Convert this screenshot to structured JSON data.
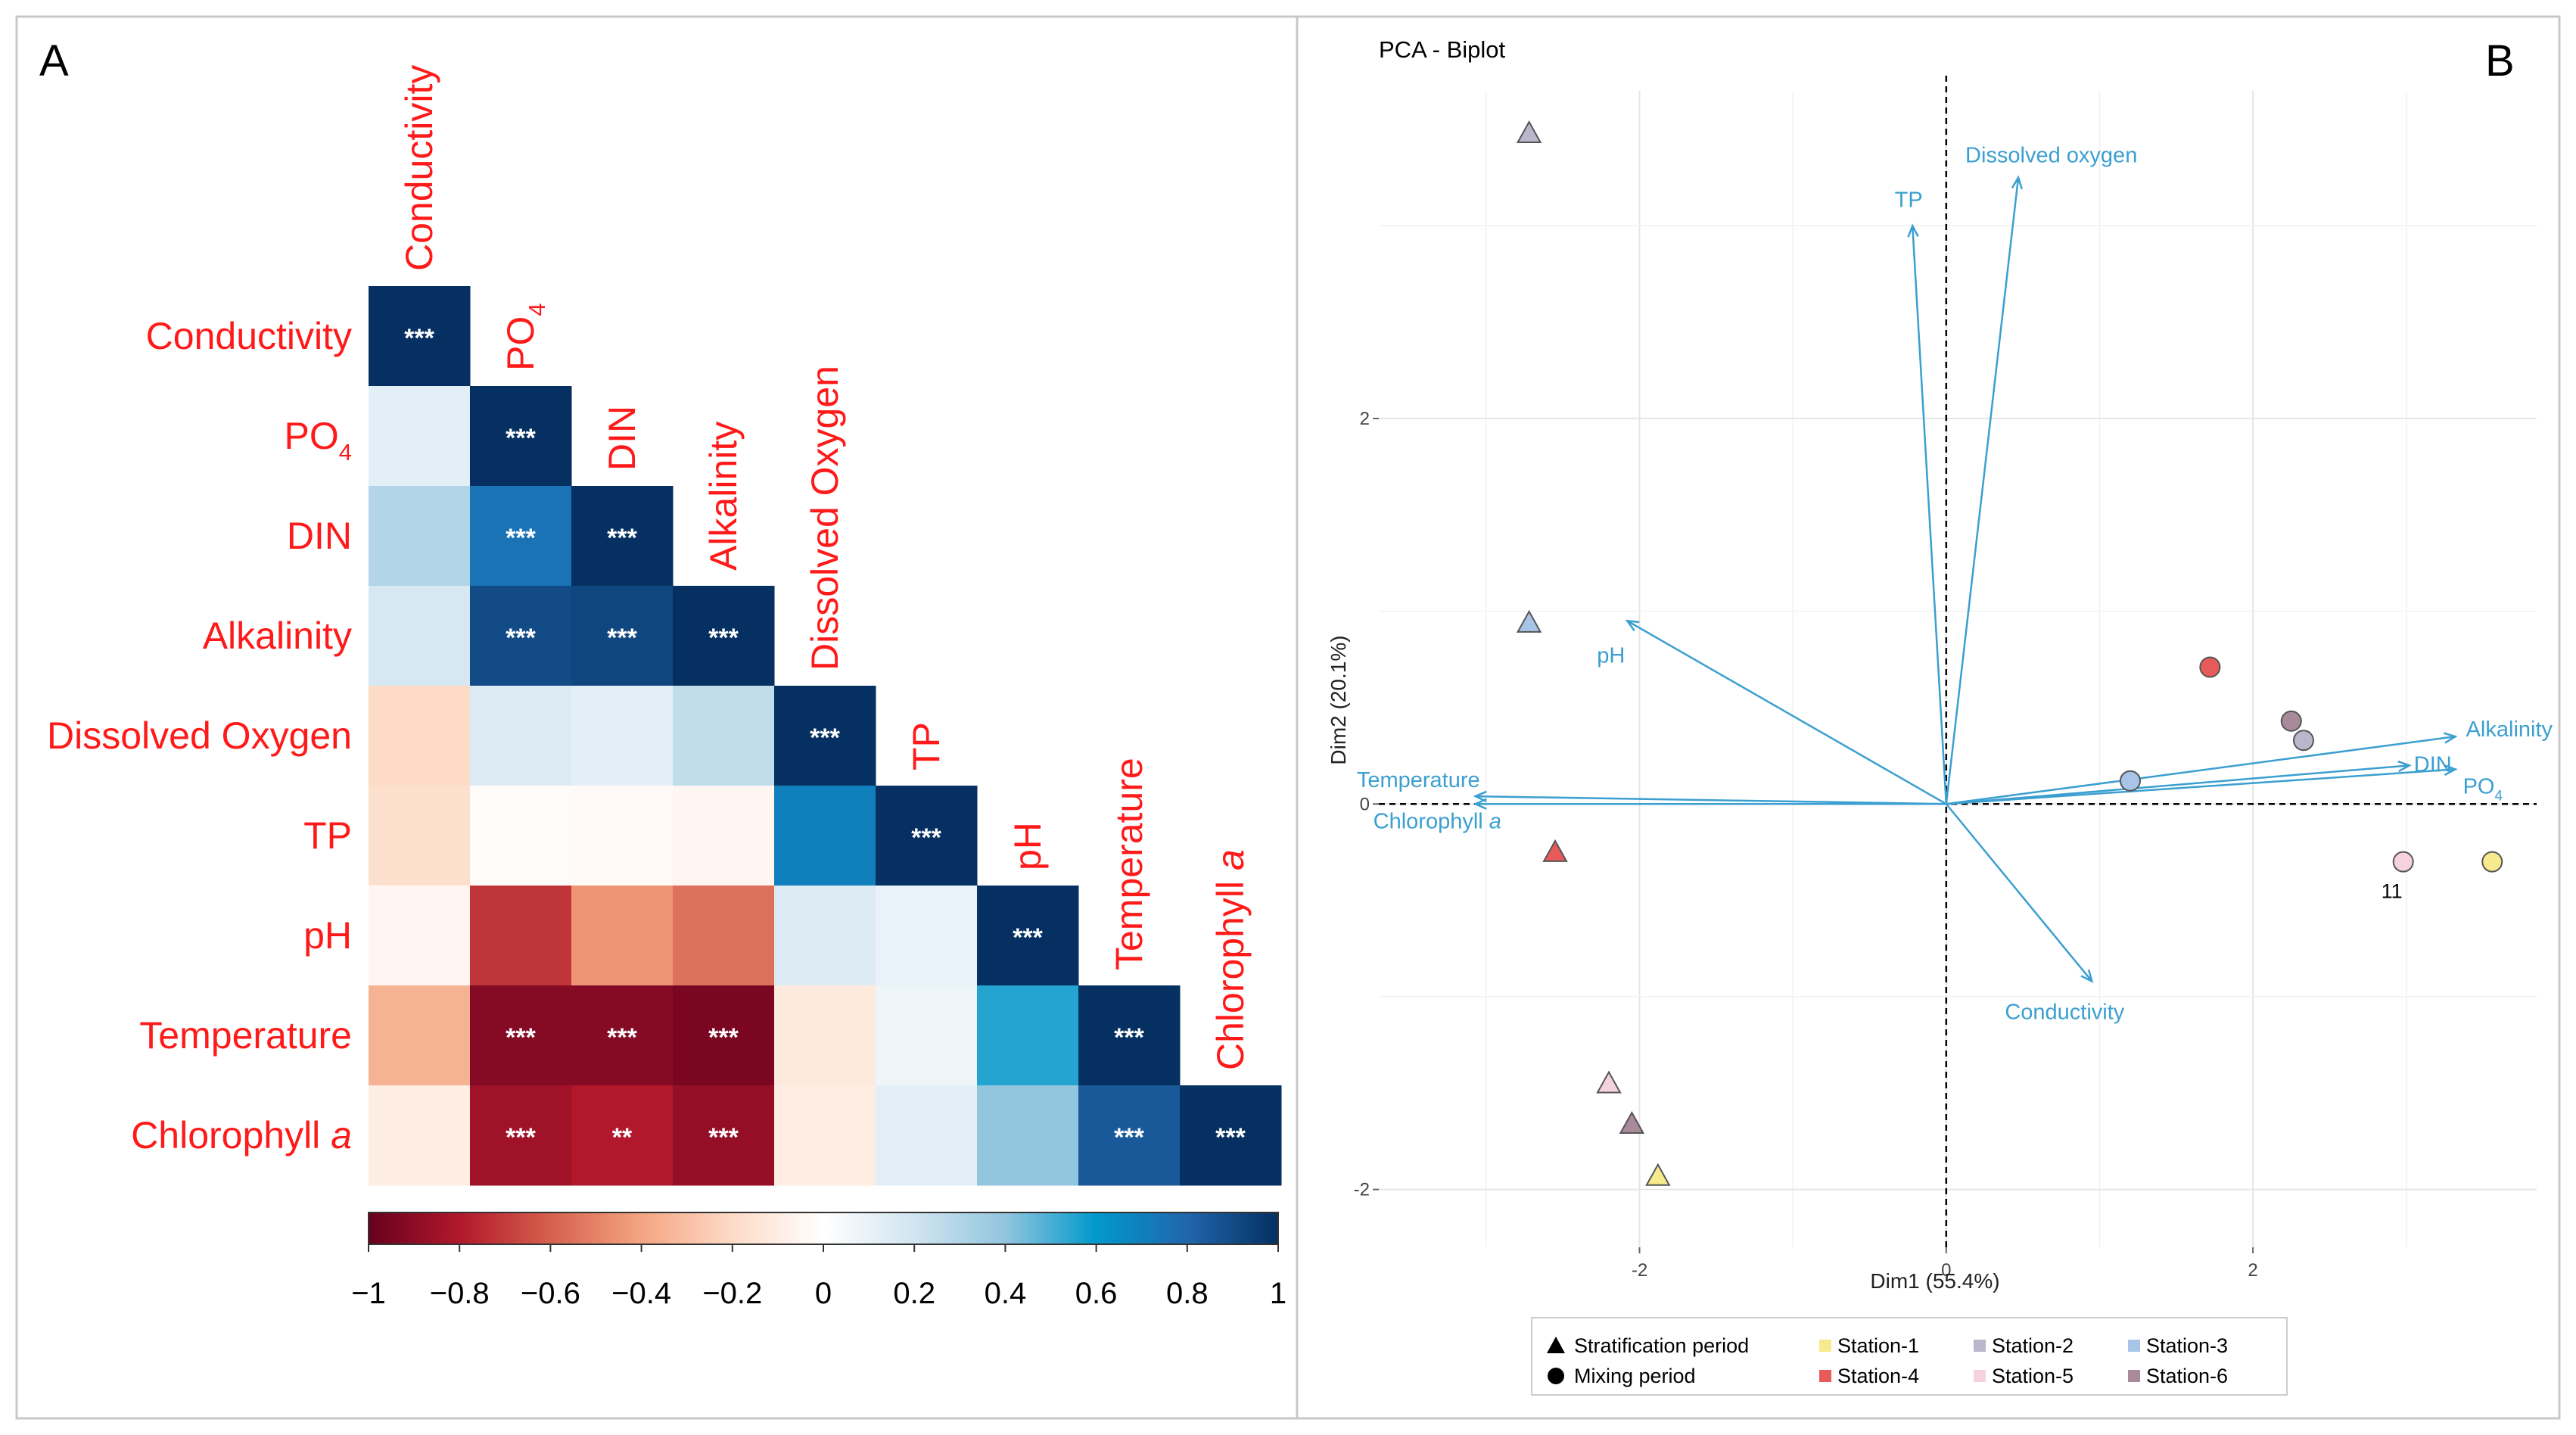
{
  "panel_a": {
    "label": "A",
    "variables": [
      "Conductivity",
      "PO4",
      "DIN",
      "Alkalinity",
      "Dissolved Oxygen",
      "TP",
      "pH",
      "Temperature",
      "Chlorophyll a"
    ],
    "labels": [
      {
        "main": "Conductivity",
        "sub": "",
        "italic": ""
      },
      {
        "main": "PO",
        "sub": "4",
        "italic": ""
      },
      {
        "main": "DIN",
        "sub": "",
        "italic": ""
      },
      {
        "main": "Alkalinity",
        "sub": "",
        "italic": ""
      },
      {
        "main": "Dissolved Oxygen",
        "sub": "",
        "italic": ""
      },
      {
        "main": "TP",
        "sub": "",
        "italic": ""
      },
      {
        "main": "pH",
        "sub": "",
        "italic": ""
      },
      {
        "main": "Temperature",
        "sub": "",
        "italic": ""
      },
      {
        "main": "Chlorophyll ",
        "sub": "",
        "italic": "a"
      }
    ],
    "colorbar_ticks": [
      "−1",
      "−0.8",
      "−0.6",
      "−0.4",
      "−0.2",
      "0",
      "0.2",
      "0.4",
      "0.6",
      "0.8",
      "1"
    ],
    "colors": {
      "label": "#ff1a1a",
      "significance": "#ffffff"
    }
  },
  "panel_b": {
    "label": "B",
    "title": "PCA - Biplot",
    "legend": {
      "shapes": [
        {
          "label": "Stratification period",
          "shape": "triangle"
        },
        {
          "label": "Mixing period",
          "shape": "circle"
        }
      ],
      "stations": [
        {
          "label": "Station-1",
          "color": "#f6ea8c"
        },
        {
          "label": "Station-2",
          "color": "#b9b7cc"
        },
        {
          "label": "Station-3",
          "color": "#a8c4e8"
        },
        {
          "label": "Station-4",
          "color": "#e85a5a"
        },
        {
          "label": "Station-5",
          "color": "#f6d2dc"
        },
        {
          "label": "Station-6",
          "color": "#a98a9a"
        }
      ]
    },
    "arrow_color": "#3b9fd0"
  },
  "chart_data": [
    {
      "type": "heatmap",
      "title": "",
      "subtype": "lower-triangular correlation matrix",
      "variables": [
        "Conductivity",
        "PO4",
        "DIN",
        "Alkalinity",
        "Dissolved Oxygen",
        "TP",
        "pH",
        "Temperature",
        "Chlorophyll a"
      ],
      "matrix": [
        [
          1.0
        ],
        [
          0.12,
          1.0
        ],
        [
          0.3,
          0.75,
          1.0
        ],
        [
          0.18,
          0.9,
          0.92,
          1.0
        ],
        [
          -0.2,
          0.15,
          0.12,
          0.25,
          1.0
        ],
        [
          -0.18,
          -0.02,
          -0.03,
          -0.05,
          0.7,
          1.0
        ],
        [
          -0.05,
          -0.72,
          -0.45,
          -0.55,
          0.15,
          0.1,
          1.0
        ],
        [
          -0.35,
          -0.92,
          -0.92,
          -0.95,
          -0.12,
          0.08,
          0.55,
          1.0
        ],
        [
          -0.1,
          -0.85,
          -0.8,
          -0.88,
          -0.1,
          0.12,
          0.4,
          0.85,
          1.0
        ]
      ],
      "significance": [
        [
          "***"
        ],
        [
          "",
          "***"
        ],
        [
          "",
          "***",
          "***"
        ],
        [
          "",
          "***",
          "***",
          "***"
        ],
        [
          "",
          "",
          "",
          "",
          "***"
        ],
        [
          "",
          "",
          "",
          "",
          "",
          "***"
        ],
        [
          "",
          "",
          "",
          "",
          "",
          "",
          "***"
        ],
        [
          "",
          "***",
          "***",
          "***",
          "",
          "",
          "",
          "***"
        ],
        [
          "",
          "***",
          "**",
          "***",
          "",
          "",
          "",
          "***",
          "***"
        ]
      ],
      "colorbar": {
        "min": -1,
        "max": 1,
        "ticks": [
          -1,
          -0.8,
          -0.6,
          -0.4,
          -0.2,
          0,
          0.2,
          0.4,
          0.6,
          0.8,
          1
        ]
      }
    },
    {
      "type": "scatter",
      "title": "PCA - Biplot",
      "xlabel": "Dim1 (55.4%)",
      "ylabel": "Dim2 (20.1%)",
      "xlim": [
        -3.7,
        3.85
      ],
      "ylim": [
        -2.3,
        3.7
      ],
      "xticks": [
        -2,
        0,
        2
      ],
      "yticks": [
        -2,
        0,
        2
      ],
      "xtick_labels": [
        "-2",
        "0",
        "2"
      ],
      "ytick_labels": [
        "-2",
        "0",
        "2"
      ],
      "points": [
        {
          "x": -2.72,
          "y": 3.48,
          "period": "Stratification period",
          "station": "Station-2"
        },
        {
          "x": -2.72,
          "y": 0.94,
          "period": "Stratification period",
          "station": "Station-3"
        },
        {
          "x": -2.55,
          "y": -0.25,
          "period": "Stratification period",
          "station": "Station-4"
        },
        {
          "x": -2.2,
          "y": -1.45,
          "period": "Stratification period",
          "station": "Station-5"
        },
        {
          "x": -2.05,
          "y": -1.66,
          "period": "Stratification period",
          "station": "Station-6"
        },
        {
          "x": -1.88,
          "y": -1.93,
          "period": "Stratification period",
          "station": "Station-1"
        },
        {
          "x": 1.2,
          "y": 0.12,
          "period": "Mixing period",
          "station": "Station-3"
        },
        {
          "x": 1.72,
          "y": 0.71,
          "period": "Mixing period",
          "station": "Station-4"
        },
        {
          "x": 2.25,
          "y": 0.43,
          "period": "Mixing period",
          "station": "Station-6"
        },
        {
          "x": 2.33,
          "y": 0.33,
          "period": "Mixing period",
          "station": "Station-2"
        },
        {
          "x": 2.98,
          "y": -0.3,
          "period": "Mixing period",
          "station": "Station-5",
          "label": "11"
        },
        {
          "x": 3.56,
          "y": -0.3,
          "period": "Mixing period",
          "station": "Station-1"
        }
      ],
      "loadings": [
        {
          "name": "Dissolved oxygen",
          "x": 0.47,
          "y": 3.25
        },
        {
          "name": "TP",
          "x": -0.22,
          "y": 3.0
        },
        {
          "name": "pH",
          "x": -2.08,
          "y": 0.95
        },
        {
          "name": "Temperature",
          "x": -3.07,
          "y": 0.04
        },
        {
          "name": "Chlorophyll a",
          "x": -3.07,
          "y": 0.0
        },
        {
          "name": "Alkalinity",
          "x": 3.32,
          "y": 0.35
        },
        {
          "name": "DIN",
          "x": 3.02,
          "y": 0.2
        },
        {
          "name": "PO4",
          "x": 3.32,
          "y": 0.18
        },
        {
          "name": "Conductivity",
          "x": 0.95,
          "y": -0.92
        }
      ],
      "loading_labels": [
        {
          "text": "Dissolved oxygen",
          "sub": "",
          "italic": ""
        },
        {
          "text": "TP",
          "sub": "",
          "italic": ""
        },
        {
          "text": "pH",
          "sub": "",
          "italic": ""
        },
        {
          "text": "Temperature",
          "sub": "",
          "italic": ""
        },
        {
          "text": "Chlorophyll ",
          "sub": "",
          "italic": "a"
        },
        {
          "text": "Alkalinity",
          "sub": "",
          "italic": ""
        },
        {
          "text": "DIN",
          "sub": "",
          "italic": ""
        },
        {
          "text": "PO",
          "sub": "4",
          "italic": ""
        },
        {
          "text": "Conductivity",
          "sub": "",
          "italic": ""
        }
      ]
    }
  ]
}
